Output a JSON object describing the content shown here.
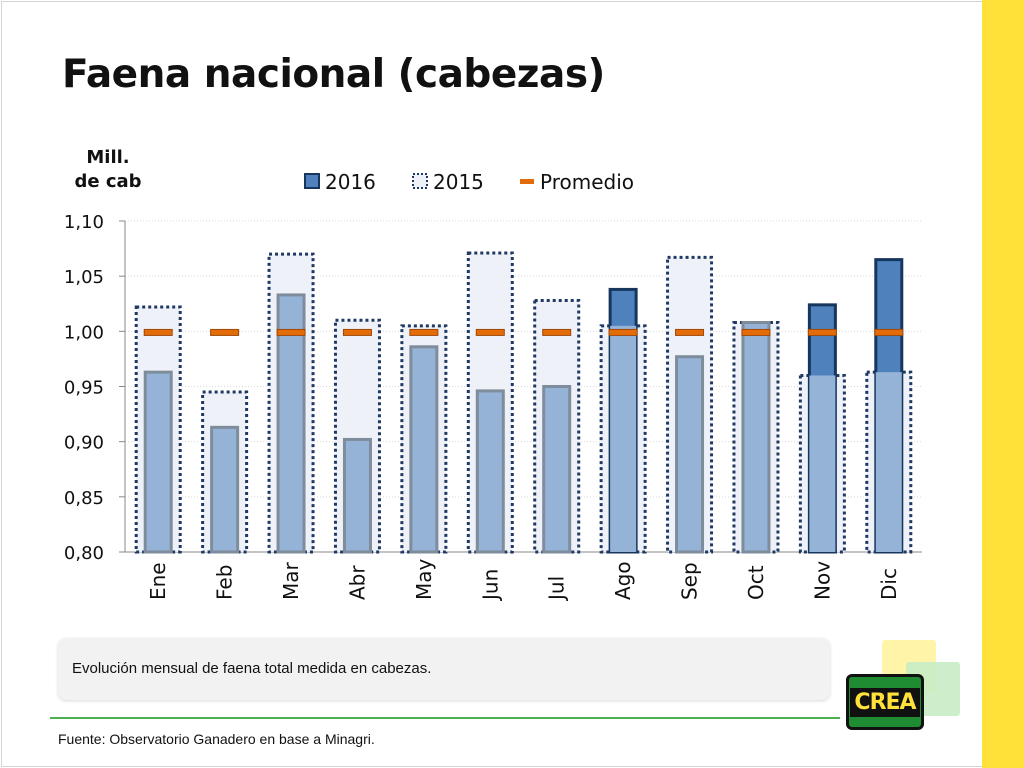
{
  "slide": {
    "title": "Faena nacional (cabezas)",
    "unit_line1": "Mill.",
    "unit_line2": "de cab",
    "caption": "Evolución mensual de faena total medida en cabezas.",
    "source": "Fuente: Observatorio Ganadero en base a Minagri.",
    "logo_text": "CREA"
  },
  "colors": {
    "bar_2016": "#4f81bd",
    "bar_2016_border": "#17365d",
    "bar_2015_fill": "#eef2f8",
    "bar_2015_border": "#1f3864",
    "promedio": "#e36c09",
    "overlap_fill": "#95b3d7",
    "overlap_border": "#7f8c9c",
    "accent_yellow": "#ffe13a",
    "brand_green": "#1f8b32"
  },
  "chart_data": {
    "type": "bar",
    "categories": [
      "Ene",
      "Feb",
      "Mar",
      "Abr",
      "May",
      "Jun",
      "Jul",
      "Ago",
      "Sep",
      "Oct",
      "Nov",
      "Dic"
    ],
    "series": [
      {
        "name": "2016",
        "values": [
          0.963,
          0.913,
          1.033,
          0.902,
          0.986,
          0.946,
          0.95,
          1.038,
          0.977,
          1.008,
          1.024,
          1.065
        ]
      },
      {
        "name": "2015",
        "values": [
          1.022,
          0.945,
          1.07,
          1.01,
          1.005,
          1.071,
          1.028,
          1.005,
          1.067,
          1.008,
          0.96,
          0.963
        ]
      },
      {
        "name": "Promedio",
        "values": [
          0.999,
          0.999,
          0.999,
          0.999,
          0.999,
          0.999,
          0.999,
          0.999,
          0.999,
          0.999,
          0.999,
          0.999
        ]
      }
    ],
    "yticks": [
      "1,10",
      "1,05",
      "1,00",
      "0,95",
      "0,90",
      "0,85",
      "0,80"
    ],
    "ylim": [
      0.8,
      1.1
    ],
    "grid": true,
    "legend": "top-center",
    "legend_entries": [
      "2016",
      "2015",
      "Promedio"
    ]
  }
}
